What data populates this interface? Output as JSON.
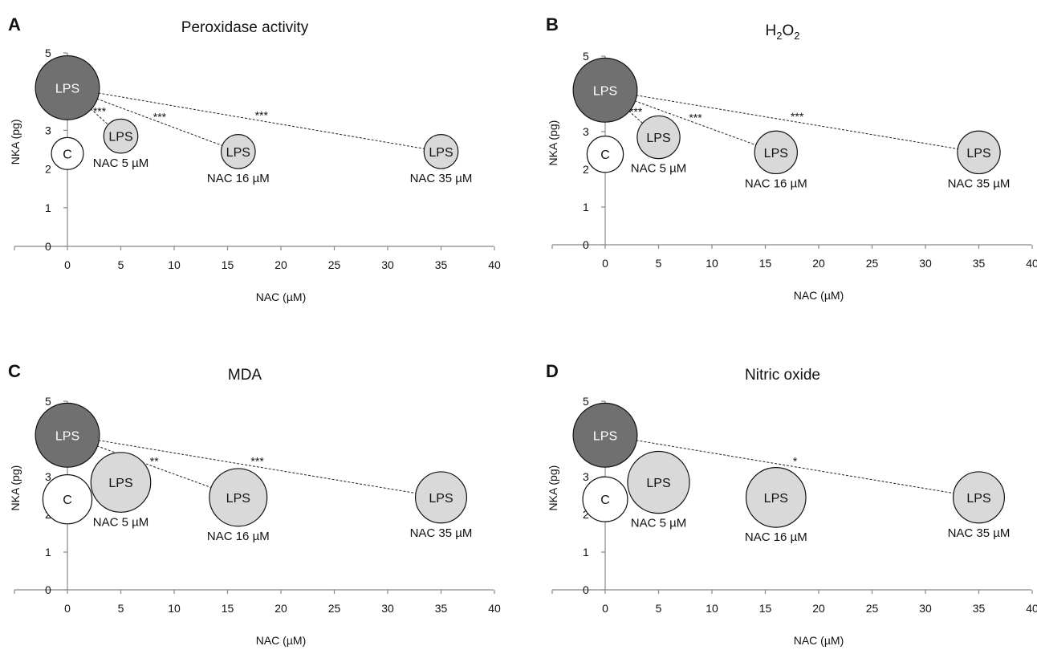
{
  "colors": {
    "lps_high": "#707070",
    "lps_treated": "#d9d9d9",
    "control": "#ffffff",
    "lps_high_text": "#ffffff",
    "text": "#111111"
  },
  "chart_data": [
    {
      "type": "scatter",
      "panel": "A",
      "title": "Peroxidase activity",
      "xlabel": "NAC (µM)",
      "ylabel": "NKA (pg)",
      "xlim": [
        0,
        40
      ],
      "ylim": [
        0,
        5
      ],
      "xticks": [
        0,
        5,
        10,
        15,
        20,
        25,
        30,
        35,
        40
      ],
      "yticks": [
        0,
        1,
        2,
        3,
        4,
        5
      ],
      "grid": false,
      "points": [
        {
          "x": 0,
          "y": 4.1,
          "label": "LPS",
          "condition": "",
          "group": "lps_high",
          "r": 3
        },
        {
          "x": 0,
          "y": 2.4,
          "label": "C",
          "condition": "",
          "group": "control",
          "r": 1.5
        },
        {
          "x": 5,
          "y": 2.85,
          "label": "LPS",
          "condition": "NAC 5 µM",
          "group": "lps_treated",
          "r": 1.6
        },
        {
          "x": 16,
          "y": 2.45,
          "label": "LPS",
          "condition": "NAC 16 µM",
          "group": "lps_treated",
          "r": 1.6
        },
        {
          "x": 35,
          "y": 2.45,
          "label": "LPS",
          "condition": "NAC 35 µM",
          "group": "lps_treated",
          "r": 1.6
        }
      ],
      "annotations": [
        {
          "from": 0,
          "to": 2,
          "text": "***"
        },
        {
          "from": 0,
          "to": 3,
          "text": "***"
        },
        {
          "from": 0,
          "to": 4,
          "text": "***"
        }
      ]
    },
    {
      "type": "scatter",
      "panel": "B",
      "title": "H2O2",
      "title_parts": [
        "H",
        "2",
        "O",
        "2"
      ],
      "xlabel": "NAC (µM)",
      "ylabel": "NKA (pg)",
      "xlim": [
        0,
        40
      ],
      "ylim": [
        0,
        5
      ],
      "xticks": [
        0,
        5,
        10,
        15,
        20,
        25,
        30,
        35,
        40
      ],
      "yticks": [
        0,
        1,
        2,
        3,
        4,
        5
      ],
      "grid": false,
      "points": [
        {
          "x": 0,
          "y": 4.1,
          "label": "LPS",
          "condition": "",
          "group": "lps_high",
          "r": 3
        },
        {
          "x": 0,
          "y": 2.4,
          "label": "C",
          "condition": "",
          "group": "control",
          "r": 1.7
        },
        {
          "x": 5,
          "y": 2.85,
          "label": "LPS",
          "condition": "NAC 5 µM",
          "group": "lps_treated",
          "r": 2
        },
        {
          "x": 16,
          "y": 2.45,
          "label": "LPS",
          "condition": "NAC 16 µM",
          "group": "lps_treated",
          "r": 2
        },
        {
          "x": 35,
          "y": 2.45,
          "label": "LPS",
          "condition": "NAC 35 µM",
          "group": "lps_treated",
          "r": 2
        }
      ],
      "annotations": [
        {
          "from": 0,
          "to": 2,
          "text": "***"
        },
        {
          "from": 0,
          "to": 3,
          "text": "***"
        },
        {
          "from": 0,
          "to": 4,
          "text": "***"
        }
      ]
    },
    {
      "type": "scatter",
      "panel": "C",
      "title": "MDA",
      "xlabel": "NAC (µM)",
      "ylabel": "NKA (pg)",
      "xlim": [
        0,
        40
      ],
      "ylim": [
        0,
        5
      ],
      "xticks": [
        0,
        5,
        10,
        15,
        20,
        25,
        30,
        35,
        40
      ],
      "yticks": [
        0,
        1,
        2,
        3,
        4,
        5
      ],
      "grid": false,
      "points": [
        {
          "x": 0,
          "y": 4.1,
          "label": "LPS",
          "condition": "",
          "group": "lps_high",
          "r": 3
        },
        {
          "x": 0,
          "y": 2.4,
          "label": "C",
          "condition": "",
          "group": "control",
          "r": 2.3
        },
        {
          "x": 5,
          "y": 2.85,
          "label": "LPS",
          "condition": "NAC 5 µM",
          "group": "lps_treated",
          "r": 2.8
        },
        {
          "x": 16,
          "y": 2.45,
          "label": "LPS",
          "condition": "NAC 16 µM",
          "group": "lps_treated",
          "r": 2.7
        },
        {
          "x": 35,
          "y": 2.45,
          "label": "LPS",
          "condition": "NAC 35 µM",
          "group": "lps_treated",
          "r": 2.4
        }
      ],
      "annotations": [
        {
          "from": 0,
          "to": 3,
          "text": "**"
        },
        {
          "from": 0,
          "to": 4,
          "text": "***"
        }
      ]
    },
    {
      "type": "scatter",
      "panel": "D",
      "title": "Nitric oxide",
      "xlabel": "NAC (µM)",
      "ylabel": "NKA (pg)",
      "xlim": [
        0,
        40
      ],
      "ylim": [
        0,
        5
      ],
      "xticks": [
        0,
        5,
        10,
        15,
        20,
        25,
        30,
        35,
        40
      ],
      "yticks": [
        0,
        1,
        2,
        3,
        4,
        5
      ],
      "grid": false,
      "points": [
        {
          "x": 0,
          "y": 4.1,
          "label": "LPS",
          "condition": "",
          "group": "lps_high",
          "r": 3
        },
        {
          "x": 0,
          "y": 2.4,
          "label": "C",
          "condition": "",
          "group": "control",
          "r": 2.1
        },
        {
          "x": 5,
          "y": 2.85,
          "label": "LPS",
          "condition": "NAC 5 µM",
          "group": "lps_treated",
          "r": 2.9
        },
        {
          "x": 16,
          "y": 2.45,
          "label": "LPS",
          "condition": "NAC 16 µM",
          "group": "lps_treated",
          "r": 2.8
        },
        {
          "x": 35,
          "y": 2.45,
          "label": "LPS",
          "condition": "NAC 35 µM",
          "group": "lps_treated",
          "r": 2.4
        }
      ],
      "annotations": [
        {
          "from": 0,
          "to": 4,
          "text": "*"
        }
      ]
    }
  ]
}
